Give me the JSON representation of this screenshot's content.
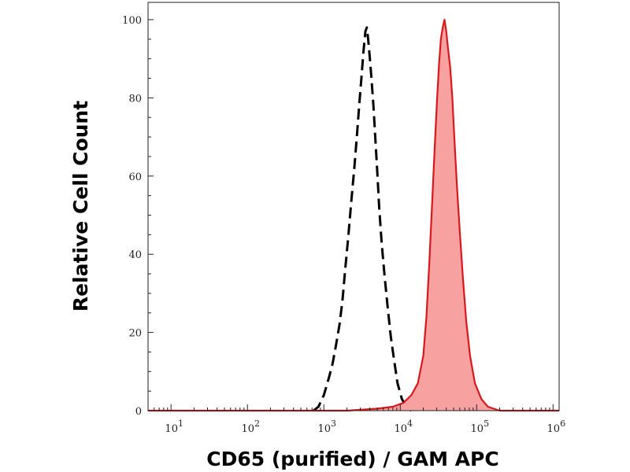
{
  "chart_data": {
    "type": "area",
    "title": "",
    "xlabel": "CD65 (purified) / GAM APC",
    "ylabel": "Relative Cell Count",
    "x_scale": "log",
    "xlim": [
      5,
      1200000
    ],
    "ylim": [
      0,
      100
    ],
    "grid": false,
    "legend": "none",
    "x_ticks": [
      {
        "value": 10,
        "base": "10",
        "exp": "1"
      },
      {
        "value": 100,
        "base": "10",
        "exp": "2"
      },
      {
        "value": 1000,
        "base": "10",
        "exp": "3"
      },
      {
        "value": 10000,
        "base": "10",
        "exp": "4"
      },
      {
        "value": 100000,
        "base": "10",
        "exp": "5"
      },
      {
        "value": 1000000,
        "base": "10",
        "exp": "6"
      }
    ],
    "y_ticks": [
      "0",
      "20",
      "40",
      "60",
      "80",
      "100"
    ],
    "series": [
      {
        "style": "dashed",
        "color": "#000000",
        "x": [
          730,
          850,
          1000,
          1150,
          1300,
          1450,
          1600,
          1750,
          1900,
          2100,
          2300,
          2500,
          2700,
          2900,
          3100,
          3300,
          3500,
          3650,
          3800,
          4000,
          4200,
          4450,
          4700,
          5000,
          5300,
          5700,
          6200,
          6800,
          7500,
          8300,
          9200,
          10500,
          12000,
          14000
        ],
        "y": [
          0,
          1,
          4,
          8,
          12,
          17,
          22,
          28,
          36,
          45,
          54,
          62,
          70,
          78,
          85,
          92,
          97,
          98,
          95,
          90,
          85,
          78,
          70,
          61,
          52,
          43,
          35,
          27,
          19,
          13,
          7,
          3,
          1,
          0
        ]
      },
      {
        "style": "filled",
        "color": "#d8181c",
        "fill": "#f7a1a1",
        "x": [
          5,
          1000,
          2000,
          5000,
          8000,
          11000,
          14000,
          17000,
          20000,
          22000,
          24000,
          26000,
          28000,
          30000,
          32000,
          34000,
          36000,
          38000,
          40000,
          42000,
          45000,
          48000,
          51000,
          55000,
          60000,
          66000,
          73000,
          82000,
          95000,
          115000,
          140000,
          200000,
          400000,
          1200000
        ],
        "y": [
          0,
          0,
          0,
          0.5,
          1,
          2,
          4,
          7,
          14,
          24,
          38,
          52,
          66,
          78,
          88,
          95,
          98,
          100,
          97,
          93,
          88,
          80,
          70,
          58,
          46,
          34,
          23,
          14,
          7,
          3,
          1,
          0,
          0,
          0
        ]
      }
    ]
  }
}
